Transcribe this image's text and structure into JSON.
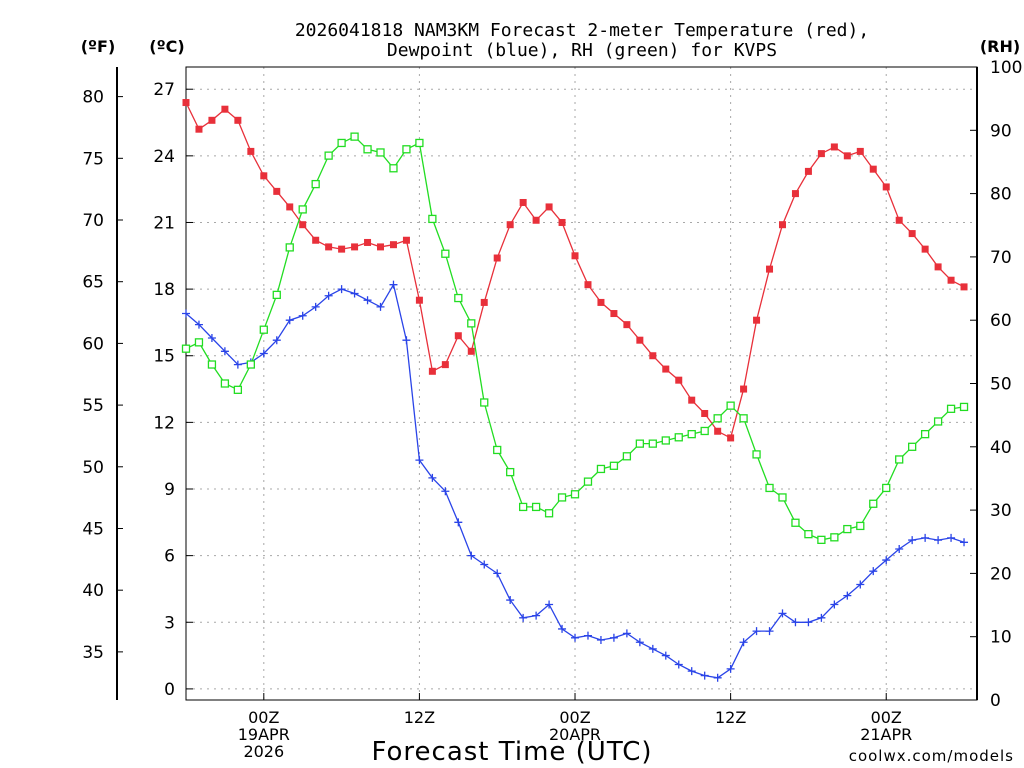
{
  "title_line1": "2026041818 NAM3KM Forecast 2-meter Temperature (red),",
  "title_line2": "Dewpoint (blue), RH (green) for KVPS",
  "footer": "coolwx.com/models",
  "colors": {
    "temperature": "#e8303a",
    "dewpoint": "#2a44e8",
    "rh": "#22dd22",
    "axis": "#000000",
    "grid": "#a8a8a8",
    "footer": "#e8303a"
  },
  "chart_data": {
    "type": "line",
    "title": "2026041818 NAM3KM Forecast 2-meter Temperature (red), Dewpoint (blue), RH (green) for KVPS",
    "xlabel": "Forecast Time (UTC)",
    "x_unit": "forecast hour from 2026-04-18 18Z",
    "xlim": [
      0,
      61
    ],
    "x_ticks": [
      {
        "hour": 6,
        "lines": [
          "00Z",
          "19APR",
          "2026"
        ]
      },
      {
        "hour": 18,
        "lines": [
          "12Z"
        ]
      },
      {
        "hour": 30,
        "lines": [
          "00Z",
          "20APR"
        ]
      },
      {
        "hour": 42,
        "lines": [
          "12Z"
        ]
      },
      {
        "hour": 54,
        "lines": [
          "00Z",
          "21APR"
        ]
      }
    ],
    "axes": {
      "celsius": {
        "label": "(ºC)",
        "range": [
          -0.5,
          28
        ],
        "ticks": [
          0,
          3,
          6,
          9,
          12,
          15,
          18,
          21,
          24,
          27
        ]
      },
      "fahrenheit": {
        "label": "(ºF)",
        "range": [
          31.1,
          82.4
        ],
        "ticks": [
          35,
          40,
          45,
          50,
          55,
          60,
          65,
          70,
          75,
          80
        ]
      },
      "rh": {
        "label": "(RH)",
        "range": [
          0,
          100
        ],
        "ticks": [
          0,
          10,
          20,
          30,
          40,
          50,
          60,
          70,
          80,
          90,
          100
        ]
      }
    },
    "x": [
      0,
      1,
      2,
      3,
      4,
      5,
      6,
      7,
      8,
      9,
      10,
      11,
      12,
      13,
      14,
      15,
      16,
      17,
      18,
      19,
      20,
      21,
      22,
      23,
      24,
      25,
      26,
      27,
      28,
      29,
      30,
      31,
      32,
      33,
      34,
      35,
      36,
      37,
      38,
      39,
      40,
      41,
      42,
      43,
      44,
      45,
      46,
      47,
      48,
      49,
      50,
      51,
      52,
      53,
      54,
      55,
      56,
      57,
      58,
      59,
      60
    ],
    "series": [
      {
        "name": "2-meter Temperature",
        "color": "red",
        "unit": "degC",
        "marker": "filled-square",
        "values": [
          26.4,
          25.2,
          25.6,
          26.1,
          25.6,
          24.2,
          23.1,
          22.4,
          21.7,
          20.9,
          20.2,
          19.9,
          19.8,
          19.9,
          20.1,
          19.9,
          20.0,
          20.2,
          17.5,
          14.3,
          14.6,
          15.9,
          15.2,
          17.4,
          19.4,
          20.9,
          21.9,
          21.1,
          21.7,
          21.0,
          19.5,
          18.2,
          17.4,
          16.9,
          16.4,
          15.7,
          15.0,
          14.4,
          13.9,
          13.0,
          12.4,
          11.6,
          11.3,
          13.5,
          16.6,
          18.9,
          20.9,
          22.3,
          23.3,
          24.1,
          24.4,
          24.0,
          24.2,
          23.4,
          22.6,
          21.1,
          20.5,
          19.8,
          19.0,
          18.4,
          18.1
        ]
      },
      {
        "name": "2-meter Dewpoint",
        "color": "blue",
        "unit": "degC",
        "marker": "plus",
        "values": [
          16.9,
          16.4,
          15.8,
          15.2,
          14.6,
          14.7,
          15.1,
          15.7,
          16.6,
          16.8,
          17.2,
          17.7,
          18.0,
          17.8,
          17.5,
          17.2,
          18.2,
          15.7,
          10.3,
          9.5,
          8.9,
          7.5,
          6.0,
          5.6,
          5.2,
          4.0,
          3.2,
          3.3,
          3.8,
          2.7,
          2.3,
          2.4,
          2.2,
          2.3,
          2.5,
          2.1,
          1.8,
          1.5,
          1.1,
          0.8,
          0.6,
          0.5,
          0.9,
          2.1,
          2.6,
          2.6,
          3.4,
          3.0,
          3.0,
          3.2,
          3.8,
          4.2,
          4.7,
          5.3,
          5.8,
          6.3,
          6.7,
          6.8,
          6.7,
          6.8,
          6.6
        ]
      },
      {
        "name": "Relative Humidity",
        "color": "green",
        "unit": "percent",
        "marker": "open-square",
        "values": [
          55.5,
          56.5,
          53.0,
          50.0,
          49.0,
          53.0,
          58.5,
          64.0,
          71.5,
          77.5,
          81.5,
          86.0,
          88.0,
          89.0,
          87.0,
          86.5,
          84.0,
          87.0,
          88.0,
          76.0,
          70.5,
          63.5,
          59.5,
          47.0,
          39.5,
          36.0,
          30.5,
          30.5,
          29.5,
          32.0,
          32.5,
          34.5,
          36.5,
          37.0,
          38.5,
          40.5,
          40.5,
          41.0,
          41.5,
          42.0,
          42.5,
          44.5,
          46.5,
          44.5,
          38.8,
          33.5,
          32.0,
          28.0,
          26.2,
          25.3,
          25.7,
          27.0,
          27.5,
          31.0,
          33.5,
          38.0,
          40.0,
          42.0,
          44.0,
          46.0,
          46.3
        ]
      }
    ]
  }
}
